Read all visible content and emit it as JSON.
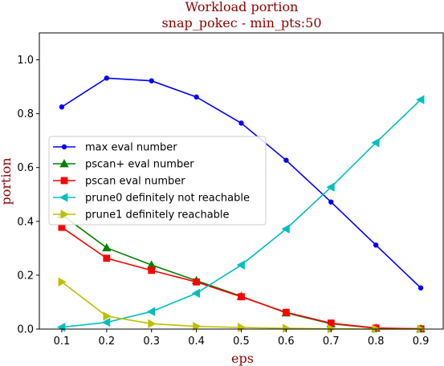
{
  "chart_data": {
    "type": "line",
    "title": "Workload portion",
    "subtitle": "snap_pokec - min_pts:50",
    "xlabel": "eps",
    "ylabel": "portion",
    "x": [
      0.1,
      0.2,
      0.3,
      0.4,
      0.5,
      0.6,
      0.7,
      0.8,
      0.9
    ],
    "xlim": [
      0.05,
      0.95
    ],
    "ylim": [
      0.0,
      1.1
    ],
    "xticks": [
      "0.1",
      "0.2",
      "0.3",
      "0.4",
      "0.5",
      "0.6",
      "0.7",
      "0.8",
      "0.9"
    ],
    "yticks": [
      "0.0",
      "0.2",
      "0.4",
      "0.6",
      "0.8",
      "1.0"
    ],
    "grid": false,
    "legend_position": "center-left",
    "series": [
      {
        "name": "max eval number",
        "color": "#0000ff",
        "marker": "point",
        "values": [
          0.825,
          0.932,
          0.922,
          0.862,
          0.765,
          0.627,
          0.472,
          0.312,
          0.153
        ]
      },
      {
        "name": "pscan+ eval number",
        "color": "#008000",
        "marker": "triangle-up",
        "values": [
          0.425,
          0.302,
          0.238,
          0.18,
          0.122,
          0.06,
          0.02,
          0.003,
          0.001
        ]
      },
      {
        "name": "pscan eval number",
        "color": "#ff0000",
        "marker": "square",
        "values": [
          0.378,
          0.263,
          0.218,
          0.175,
          0.12,
          0.062,
          0.022,
          0.004,
          0.001
        ]
      },
      {
        "name": "prune0 definitely not reachable",
        "color": "#00bfbf",
        "marker": "triangle-left",
        "values": [
          0.007,
          0.025,
          0.065,
          0.133,
          0.238,
          0.372,
          0.527,
          0.692,
          0.852
        ]
      },
      {
        "name": "prune1 definitely reachable",
        "color": "#bfbf00",
        "marker": "triangle-right",
        "values": [
          0.175,
          0.048,
          0.02,
          0.01,
          0.006,
          0.003,
          0.001,
          0.0,
          0.0
        ]
      }
    ]
  }
}
